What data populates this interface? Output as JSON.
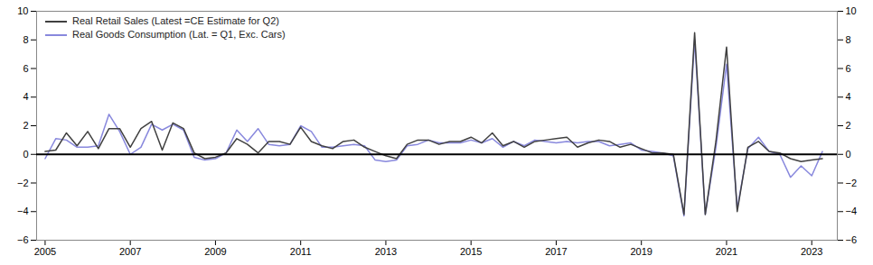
{
  "chart_data": {
    "type": "line",
    "x": [
      2005.0,
      2005.25,
      2005.5,
      2005.75,
      2006.0,
      2006.25,
      2006.5,
      2006.75,
      2007.0,
      2007.25,
      2007.5,
      2007.75,
      2008.0,
      2008.25,
      2008.5,
      2008.75,
      2009.0,
      2009.25,
      2009.5,
      2009.75,
      2010.0,
      2010.25,
      2010.5,
      2010.75,
      2011.0,
      2011.25,
      2011.5,
      2011.75,
      2012.0,
      2012.25,
      2012.5,
      2012.75,
      2013.0,
      2013.25,
      2013.5,
      2013.75,
      2014.0,
      2014.25,
      2014.5,
      2014.75,
      2015.0,
      2015.25,
      2015.5,
      2015.75,
      2016.0,
      2016.25,
      2016.5,
      2016.75,
      2017.0,
      2017.25,
      2017.5,
      2017.75,
      2018.0,
      2018.25,
      2018.5,
      2018.75,
      2019.0,
      2019.25,
      2019.5,
      2019.75,
      2020.0,
      2020.25,
      2020.5,
      2020.75,
      2021.0,
      2021.25,
      2021.5,
      2021.75,
      2022.0,
      2022.25,
      2022.5,
      2022.75,
      2023.0,
      2023.25
    ],
    "series": [
      {
        "name": "Real Retail Sales (Latest =CE Estimate for Q2)",
        "color": "#404040",
        "values": [
          0.2,
          0.3,
          1.5,
          0.6,
          1.6,
          0.4,
          1.8,
          1.8,
          0.5,
          1.8,
          2.3,
          0.3,
          2.2,
          1.8,
          0.1,
          -0.3,
          -0.2,
          0.1,
          1.1,
          0.7,
          0.1,
          0.9,
          0.9,
          0.7,
          1.9,
          0.9,
          0.6,
          0.4,
          0.9,
          1.0,
          0.5,
          0.2,
          -0.1,
          -0.3,
          0.7,
          1.0,
          1.0,
          0.7,
          0.9,
          0.9,
          1.2,
          0.8,
          1.5,
          0.6,
          0.9,
          0.5,
          0.9,
          1.0,
          1.1,
          1.2,
          0.5,
          0.8,
          1.0,
          0.9,
          0.5,
          0.7,
          0.4,
          0.1,
          0.1,
          0.0,
          -4.2,
          8.5,
          -4.2,
          0.9,
          7.5,
          -4.0,
          0.5,
          0.9,
          0.2,
          0.1,
          -0.3,
          -0.5,
          -0.4,
          -0.3
        ]
      },
      {
        "name": "Real Goods Consumption (Lat. = Q1, Exc. Cars)",
        "color": "#8888dd",
        "values": [
          -0.3,
          1.1,
          1.0,
          0.5,
          0.5,
          0.6,
          2.8,
          1.6,
          0.0,
          0.5,
          2.1,
          1.7,
          2.1,
          1.7,
          -0.2,
          -0.4,
          -0.3,
          0.1,
          1.7,
          0.9,
          1.8,
          0.7,
          0.6,
          0.7,
          2.0,
          1.6,
          0.5,
          0.5,
          0.6,
          0.7,
          0.6,
          -0.4,
          -0.5,
          -0.4,
          0.6,
          0.7,
          1.0,
          0.8,
          0.8,
          0.8,
          1.0,
          0.8,
          1.1,
          0.5,
          0.9,
          0.6,
          1.0,
          0.9,
          0.8,
          0.9,
          0.8,
          0.9,
          0.9,
          0.6,
          0.7,
          0.8,
          0.3,
          0.2,
          0.1,
          -0.1,
          -4.3,
          8.0,
          -4.2,
          0.5,
          6.3,
          -3.8,
          0.4,
          1.2,
          0.2,
          0.0,
          -1.6,
          -0.8,
          -1.5,
          0.2
        ]
      }
    ],
    "xlim": [
      2004.8,
      2023.6
    ],
    "xticks": [
      2005,
      2007,
      2009,
      2011,
      2013,
      2015,
      2017,
      2019,
      2021,
      2023
    ],
    "ylim": [
      -6,
      10
    ],
    "yticks": [
      -6,
      -4,
      -2,
      0,
      2,
      4,
      6,
      8,
      10
    ],
    "grid": false,
    "legend": "upper left"
  }
}
